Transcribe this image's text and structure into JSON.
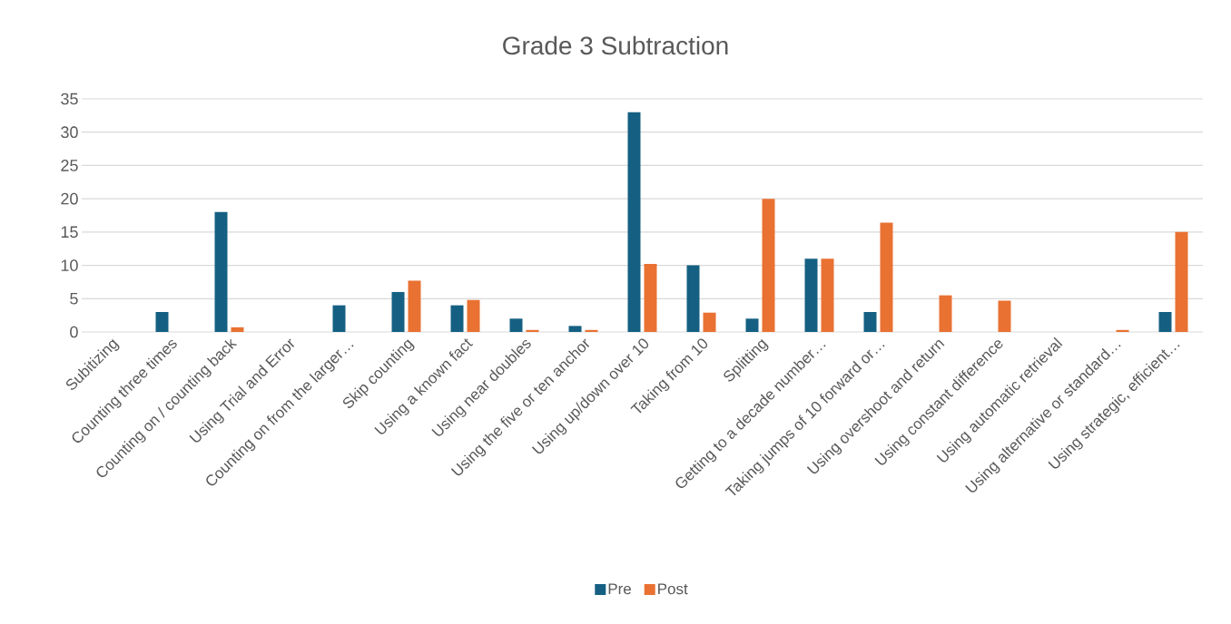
{
  "chart_data": {
    "type": "bar",
    "title": "Grade 3 Subtraction",
    "categories": [
      "Subitizing",
      "Counting three times",
      "Counting on / counting back",
      "Using Trial and Error",
      "Counting on from the larger…",
      "Skip counting",
      "Using a known fact",
      "Using near doubles",
      "Using the five or ten anchor",
      "Using up/down over 10",
      "Taking from 10",
      "Splitting",
      "Getting to a decade number…",
      "Taking jumps of 10 forward or…",
      "Using overshoot and return",
      "Using constant difference",
      "Using automatic retrieval",
      "Using alternative or standard…",
      "Using strategic, efficient…"
    ],
    "series": [
      {
        "name": "Pre",
        "color": "#156082",
        "values": [
          0,
          3,
          18,
          0,
          4,
          6,
          4,
          2,
          0.9,
          33,
          10,
          2,
          11,
          3,
          0,
          0,
          0,
          0,
          3
        ]
      },
      {
        "name": "Post",
        "color": "#e97132",
        "values": [
          0,
          0,
          0.7,
          0,
          0,
          7.7,
          4.8,
          0.3,
          0.3,
          10.2,
          2.9,
          20,
          11,
          16.4,
          5.5,
          4.7,
          0,
          0.3,
          15
        ]
      }
    ],
    "ylim": [
      0,
      35
    ],
    "yticks": [
      0,
      5,
      10,
      15,
      20,
      25,
      30,
      35
    ],
    "grid": "y",
    "legend": "bottom"
  }
}
